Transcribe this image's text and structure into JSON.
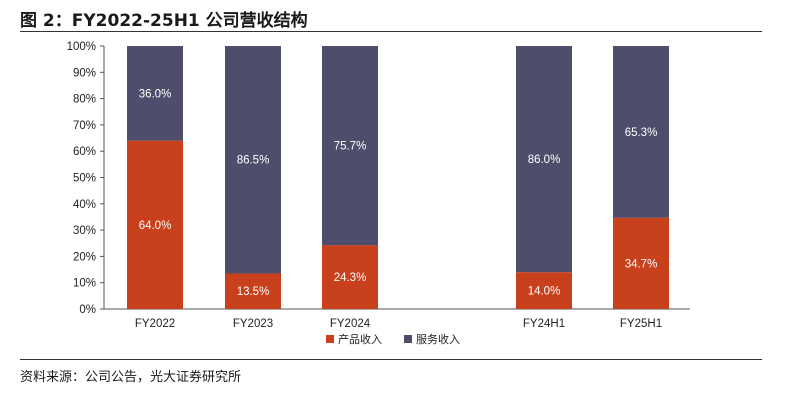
{
  "header": {
    "title": "图 2：FY2022-25H1 公司营收结构"
  },
  "footer": {
    "source": "资料来源：公司公告，光大证券研究所"
  },
  "chart_data": {
    "type": "bar",
    "stacked": true,
    "percent_stacked": true,
    "categories": [
      "FY2022",
      "FY2023",
      "FY2024",
      "FY24H1",
      "FY25H1"
    ],
    "series": [
      {
        "name": "产品收入",
        "values": [
          64.0,
          13.5,
          24.3,
          14.0,
          34.7
        ],
        "labels": [
          "64.0%",
          "13.5%",
          "24.3%",
          "14.0%",
          "34.7%"
        ],
        "color": "#c8401c"
      },
      {
        "name": "服务收入",
        "values": [
          36.0,
          86.5,
          75.7,
          86.0,
          65.3
        ],
        "labels": [
          "36.0%",
          "86.5%",
          "75.7%",
          "86.0%",
          "65.3%"
        ],
        "color": "#4f4d6c"
      }
    ],
    "ylim": [
      0,
      100
    ],
    "yticks": [
      "0%",
      "10%",
      "20%",
      "30%",
      "40%",
      "50%",
      "60%",
      "70%",
      "80%",
      "90%",
      "100%"
    ],
    "grid": false,
    "legend_position": "bottom"
  }
}
